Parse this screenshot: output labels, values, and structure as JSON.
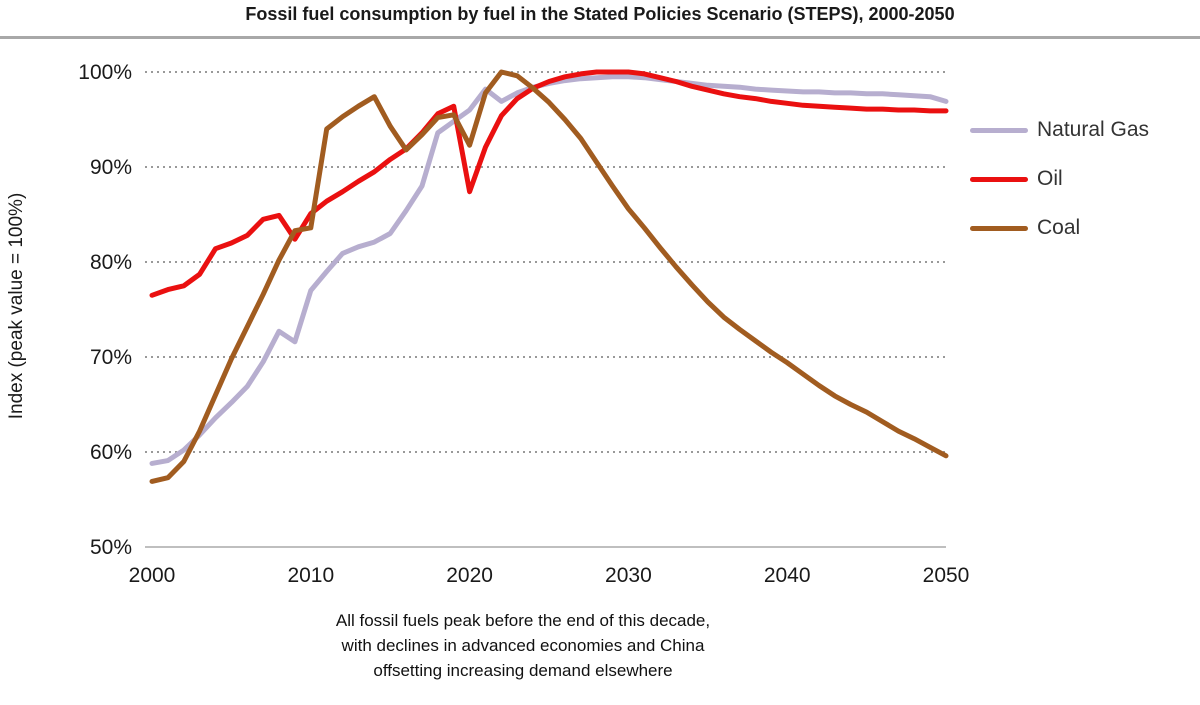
{
  "title": "Fossil fuel consumption by fuel in the Stated Policies Scenario (STEPS), 2000-2050",
  "y_axis": {
    "label": "Index (peak value = 100%)",
    "ticks": [
      {
        "value": 100,
        "label": "100%"
      },
      {
        "value": 90,
        "label": "90%"
      },
      {
        "value": 80,
        "label": "80%"
      },
      {
        "value": 70,
        "label": "70%"
      },
      {
        "value": 60,
        "label": "60%"
      },
      {
        "value": 50,
        "label": "50%"
      }
    ]
  },
  "x_axis": {
    "ticks": [
      {
        "value": 2000,
        "label": "2000"
      },
      {
        "value": 2010,
        "label": "2010"
      },
      {
        "value": 2020,
        "label": "2020"
      },
      {
        "value": 2030,
        "label": "2030"
      },
      {
        "value": 2040,
        "label": "2040"
      },
      {
        "value": 2050,
        "label": "2050"
      }
    ]
  },
  "legend": [
    {
      "name": "Natural Gas",
      "color": "#b7aecf"
    },
    {
      "name": "Oil",
      "color": "#ea1010"
    },
    {
      "name": "Coal",
      "color": "#a15c20"
    }
  ],
  "caption": {
    "lines": [
      "All fossil fuels peak before the end of this decade,",
      "with declines in advanced economies and China",
      "offsetting increasing demand elsewhere"
    ]
  },
  "colors": {
    "gridline": "#999999",
    "axis_line": "#bfbfbf",
    "title_rule": "#a8a8a8",
    "text": "#1a1a1a"
  },
  "chart_data": {
    "type": "line",
    "title": "Fossil fuel consumption by fuel in the Stated Policies Scenario (STEPS), 2000-2050",
    "xlabel": "",
    "ylabel": "Index (peak value = 100%)",
    "xlim": [
      2000,
      2050
    ],
    "ylim": [
      50,
      100
    ],
    "grid": "horizontal-dotted",
    "legend_position": "right",
    "x_start": 2000,
    "x_step": 1,
    "series": [
      {
        "name": "Natural Gas",
        "color": "#b7aecf",
        "values": [
          58.8,
          59.1,
          60.2,
          61.8,
          63.6,
          65.2,
          66.9,
          69.5,
          72.7,
          71.6,
          77.0,
          79.0,
          80.9,
          81.6,
          82.1,
          83.0,
          85.4,
          88.0,
          93.6,
          94.8,
          96.0,
          98.2,
          96.9,
          97.8,
          98.4,
          98.8,
          99.1,
          99.3,
          99.4,
          99.5,
          99.5,
          99.4,
          99.2,
          99.0,
          98.8,
          98.6,
          98.5,
          98.4,
          98.2,
          98.1,
          98.0,
          97.9,
          97.9,
          97.8,
          97.8,
          97.7,
          97.7,
          97.6,
          97.5,
          97.4,
          96.9
        ]
      },
      {
        "name": "Oil",
        "color": "#ea1010",
        "values": [
          76.5,
          77.1,
          77.5,
          78.7,
          81.4,
          82.0,
          82.8,
          84.5,
          84.9,
          82.4,
          85.1,
          86.4,
          87.4,
          88.5,
          89.5,
          90.8,
          91.9,
          93.6,
          95.6,
          96.4,
          87.4,
          92.1,
          95.4,
          97.2,
          98.3,
          99.0,
          99.5,
          99.8,
          100,
          100,
          100,
          99.8,
          99.4,
          99.0,
          98.5,
          98.1,
          97.7,
          97.4,
          97.2,
          96.9,
          96.7,
          96.5,
          96.4,
          96.3,
          96.2,
          96.1,
          96.1,
          96.0,
          96.0,
          95.9,
          95.9
        ]
      },
      {
        "name": "Coal",
        "color": "#a15c20",
        "values": [
          56.9,
          57.3,
          59.0,
          62.2,
          66.0,
          69.8,
          73.2,
          76.6,
          80.2,
          83.3,
          83.6,
          94.0,
          95.3,
          96.4,
          97.4,
          94.3,
          91.8,
          93.4,
          95.2,
          95.5,
          92.3,
          97.8,
          100,
          99.6,
          98.3,
          96.8,
          95.0,
          93.0,
          90.5,
          88.0,
          85.6,
          83.6,
          81.5,
          79.5,
          77.6,
          75.8,
          74.2,
          72.9,
          71.7,
          70.5,
          69.4,
          68.2,
          67.0,
          65.9,
          65.0,
          64.2,
          63.2,
          62.2,
          61.4,
          60.5,
          59.6
        ]
      }
    ]
  }
}
